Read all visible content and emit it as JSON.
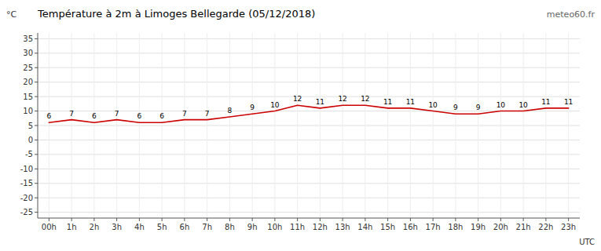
{
  "chart_data": {
    "type": "line",
    "title": "Température à 2m à Limoges Bellegarde (05/12/2018)",
    "ylabel": "°C",
    "xlabel": "UTC",
    "annotations": [
      "meteo60.fr"
    ],
    "categories": [
      "00h",
      "1h",
      "2h",
      "3h",
      "4h",
      "5h",
      "6h",
      "7h",
      "8h",
      "9h",
      "10h",
      "11h",
      "12h",
      "13h",
      "14h",
      "15h",
      "16h",
      "17h",
      "18h",
      "19h",
      "20h",
      "21h",
      "22h",
      "23h"
    ],
    "values": [
      6,
      7,
      6,
      7,
      6,
      6,
      7,
      7,
      8,
      9,
      10,
      12,
      11,
      12,
      12,
      11,
      11,
      10,
      9,
      9,
      10,
      10,
      11,
      11
    ],
    "color": "#cc0000",
    "ylim": [
      -27,
      37
    ],
    "yticks": [
      -25,
      -20,
      -15,
      -10,
      -5,
      0,
      5,
      10,
      15,
      20,
      25,
      30,
      35
    ],
    "grid": true,
    "data_labels": true
  }
}
